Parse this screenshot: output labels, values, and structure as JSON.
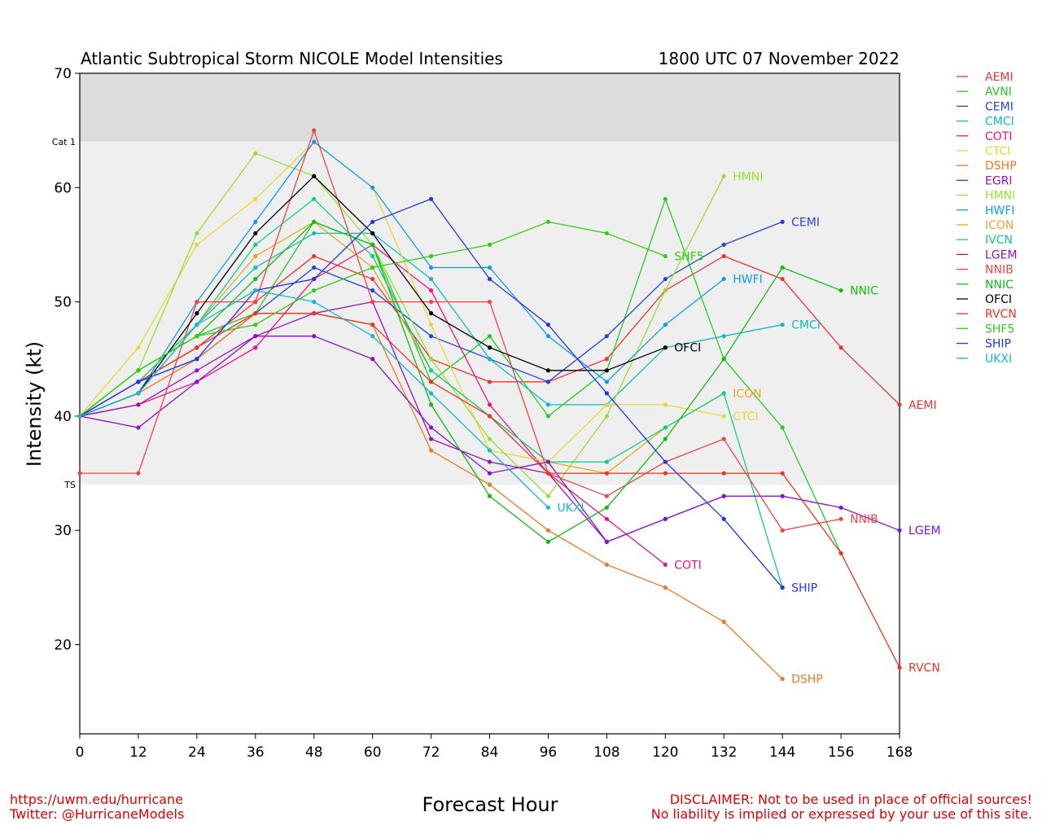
{
  "chart_data": {
    "type": "line",
    "title": "Atlantic Subtropical Storm NICOLE Model Intensities",
    "subtitle": "1800 UTC 07 November 2022",
    "xlabel": "Forecast Hour",
    "ylabel": "Intensity (kt)",
    "x_ticks": [
      0,
      12,
      24,
      36,
      48,
      60,
      72,
      84,
      96,
      108,
      120,
      132,
      144,
      156,
      168
    ],
    "y_ticks": [
      20,
      30,
      40,
      50,
      60,
      70
    ],
    "xlim": [
      0,
      168
    ],
    "ylim": [
      12.2,
      70
    ],
    "thresholds": [
      {
        "label": "TS",
        "value": 34
      },
      {
        "label": "Cat 1",
        "value": 64
      }
    ],
    "legend_position": "right",
    "series": [
      {
        "name": "AEMI",
        "color": "#ee3333",
        "x": [
          0,
          12,
          24,
          36,
          48,
          60,
          72,
          84,
          96,
          108,
          120,
          132,
          144,
          156,
          168
        ],
        "y": [
          40,
          43,
          46,
          50,
          54,
          52,
          45,
          43,
          43,
          45,
          51,
          54,
          52,
          46,
          41
        ],
        "end_label": "AEMI"
      },
      {
        "name": "AVNI",
        "color": "#22cc22",
        "x": [
          0,
          12,
          24,
          36,
          48,
          60,
          72,
          84,
          96,
          108,
          120,
          132,
          144,
          156
        ],
        "y": [
          40,
          44,
          47,
          49,
          57,
          55,
          43,
          47,
          40,
          44,
          59,
          45,
          39,
          28
        ],
        "end_label": ""
      },
      {
        "name": "CEMI",
        "color": "#2244dd",
        "x": [
          0,
          12,
          24,
          36,
          48,
          60,
          72,
          84,
          96,
          108,
          120,
          132,
          144
        ],
        "y": [
          40,
          43,
          45,
          49,
          53,
          51,
          47,
          45,
          43,
          47,
          52,
          55,
          57
        ],
        "end_label": "CEMI"
      },
      {
        "name": "CMCI",
        "color": "#11bbbb",
        "x": [
          0,
          12,
          24,
          36,
          48,
          60,
          72,
          84,
          96,
          108,
          120,
          132,
          144
        ],
        "y": [
          40,
          42,
          48,
          53,
          56,
          56,
          52,
          45,
          41,
          41,
          46,
          47,
          48
        ],
        "end_label": "CMCI"
      },
      {
        "name": "COTI",
        "color": "#ee1188",
        "x": [
          0,
          12,
          24,
          36,
          48,
          60,
          72,
          84,
          96,
          108,
          120
        ],
        "y": [
          40,
          41,
          43,
          46,
          52,
          55,
          51,
          41,
          35,
          31,
          27
        ],
        "end_label": "COTI"
      },
      {
        "name": "CTCI",
        "color": "#e6d830",
        "x": [
          0,
          12,
          24,
          36,
          48,
          60,
          72,
          84,
          96,
          108,
          120,
          132
        ],
        "y": [
          40,
          46,
          55,
          59,
          64,
          60,
          48,
          37,
          36,
          41,
          41,
          40
        ],
        "end_label": "CTCI"
      },
      {
        "name": "DSHP",
        "color": "#ee7722",
        "x": [
          0,
          12,
          24,
          36,
          48,
          60,
          72,
          84,
          96,
          108,
          120,
          132,
          144
        ],
        "y": [
          40,
          42,
          45,
          49,
          49,
          48,
          37,
          34,
          30,
          27,
          25,
          22,
          17
        ],
        "end_label": "DSHP"
      },
      {
        "name": "EGRI",
        "color": "#9911bb",
        "x": [
          0,
          12,
          24,
          36,
          48,
          60,
          72,
          84,
          96,
          108,
          120,
          132
        ],
        "y": [
          40,
          41,
          44,
          47,
          49,
          50,
          38,
          36,
          35,
          29,
          31,
          33
        ],
        "end_label": ""
      },
      {
        "name": "HMNI",
        "color": "#99dd33",
        "x": [
          0,
          12,
          24,
          36,
          48,
          60,
          72,
          84,
          96,
          108,
          120,
          132
        ],
        "y": [
          40,
          44,
          56,
          63,
          61,
          55,
          45,
          38,
          33,
          40,
          51,
          61
        ],
        "end_label": "HMNI"
      },
      {
        "name": "HWFI",
        "color": "#1199ee",
        "x": [
          0,
          12,
          24,
          36,
          48,
          60,
          72,
          84,
          96,
          108,
          120,
          132
        ],
        "y": [
          40,
          42,
          50,
          57,
          64,
          60,
          53,
          53,
          47,
          43,
          48,
          52
        ],
        "end_label": "HWFI"
      },
      {
        "name": "ICON",
        "color": "#ddaa22",
        "x": [
          0,
          12,
          24,
          36,
          48,
          60,
          72,
          84,
          96,
          108,
          120,
          132
        ],
        "y": [
          40,
          43,
          48,
          54,
          57,
          53,
          44,
          40,
          36,
          35,
          39,
          42
        ],
        "end_label": "ICON"
      },
      {
        "name": "IVCN",
        "color": "#11cc88",
        "x": [
          0,
          12,
          24,
          36,
          48,
          60,
          72,
          84,
          96,
          108,
          120,
          132,
          144
        ],
        "y": [
          40,
          43,
          48,
          55,
          59,
          54,
          44,
          40,
          36,
          36,
          39,
          42,
          25
        ],
        "end_label": ""
      },
      {
        "name": "LGEM",
        "color": "#8811cc",
        "x": [
          0,
          12,
          24,
          36,
          48,
          60,
          72,
          84,
          96,
          108,
          120,
          132,
          144,
          156,
          168
        ],
        "y": [
          40,
          39,
          43,
          47,
          47,
          45,
          39,
          35,
          36,
          29,
          31,
          33,
          33,
          32,
          30
        ],
        "end_label": "LGEM"
      },
      {
        "name": "NNIB",
        "color": "#ee4444",
        "x": [
          0,
          12,
          24,
          36,
          48,
          60,
          72,
          84,
          96,
          108,
          120,
          132,
          144,
          156
        ],
        "y": [
          35,
          35,
          50,
          50,
          65,
          50,
          50,
          50,
          35,
          33,
          36,
          38,
          30,
          31
        ],
        "end_label": "NNIB"
      },
      {
        "name": "NNIC",
        "color": "#11bb11",
        "x": [
          0,
          12,
          24,
          36,
          48,
          60,
          72,
          84,
          96,
          108,
          120,
          132,
          144,
          156
        ],
        "y": [
          40,
          44,
          47,
          52,
          57,
          55,
          41,
          33,
          29,
          32,
          38,
          45,
          53,
          51
        ],
        "end_label": "NNIC"
      },
      {
        "name": "OFCI",
        "color": "#000000",
        "x": [
          0,
          12,
          24,
          36,
          48,
          60,
          72,
          84,
          96,
          108,
          120
        ],
        "y": [
          40,
          42,
          49,
          56,
          61,
          56,
          49,
          46,
          44,
          44,
          46
        ],
        "end_label": "OFCI"
      },
      {
        "name": "RVCN",
        "color": "#ee3322",
        "x": [
          0,
          12,
          24,
          36,
          48,
          60,
          72,
          84,
          96,
          108,
          120,
          132,
          144,
          156,
          168
        ],
        "y": [
          40,
          43,
          46,
          49,
          49,
          48,
          43,
          40,
          35,
          35,
          35,
          35,
          35,
          28,
          18
        ],
        "end_label": "RVCN"
      },
      {
        "name": "SHF5",
        "color": "#33cc11",
        "x": [
          0,
          12,
          24,
          36,
          48,
          60,
          72,
          84,
          96,
          108,
          120
        ],
        "y": [
          40,
          44,
          47,
          48,
          51,
          53,
          54,
          55,
          57,
          56,
          54
        ],
        "end_label": "SHF5"
      },
      {
        "name": "SHIP",
        "color": "#2233ee",
        "x": [
          0,
          12,
          24,
          36,
          48,
          60,
          72,
          84,
          96,
          108,
          120,
          132,
          144
        ],
        "y": [
          40,
          43,
          45,
          51,
          52,
          57,
          59,
          52,
          48,
          42,
          36,
          31,
          25
        ],
        "end_label": "SHIP"
      },
      {
        "name": "UKXI",
        "color": "#11bbcc",
        "x": [
          0,
          12,
          24,
          36,
          48,
          60,
          72,
          84,
          96
        ],
        "y": [
          40,
          42,
          48,
          51,
          50,
          47,
          42,
          37,
          32
        ],
        "end_label": "UKXI"
      }
    ]
  },
  "footer": {
    "left_line1": "https://uwm.edu/hurricane",
    "left_line2": "Twitter: @HurricaneModels",
    "right_line1": "DISCLAIMER: Not to be used in place of official sources!",
    "right_line2": "No liability is implied or expressed by your use of this site."
  }
}
